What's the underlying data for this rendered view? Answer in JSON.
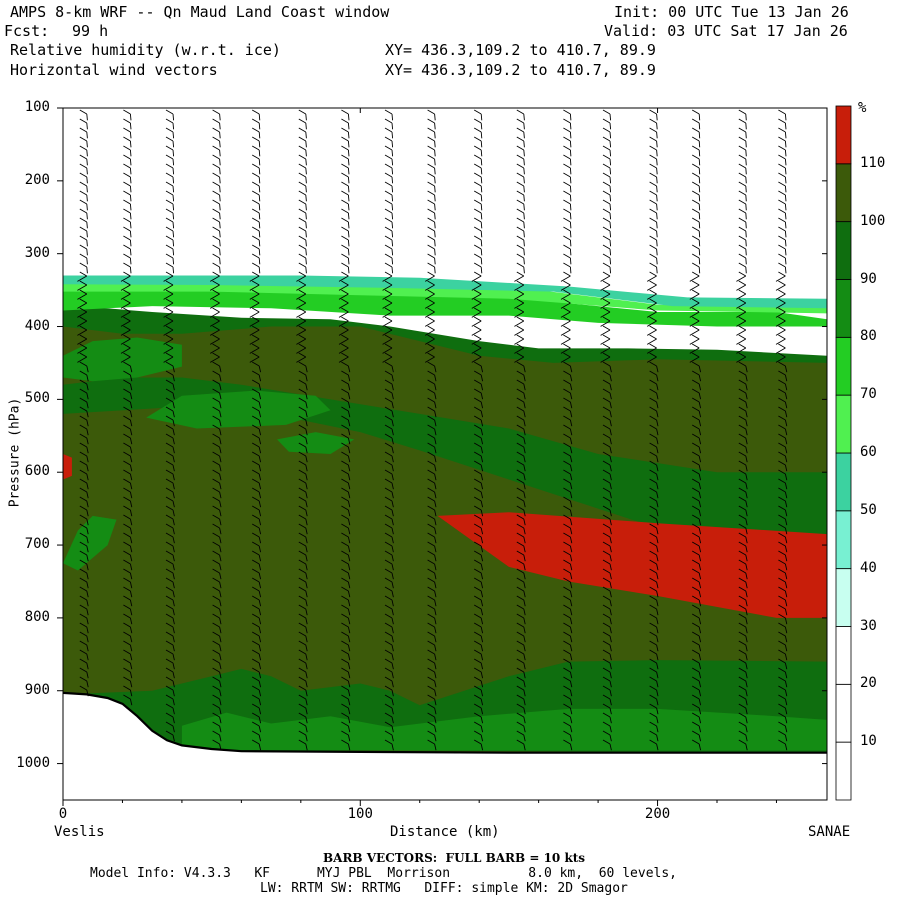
{
  "header": {
    "title": "AMPS 8-km WRF -- Qn Maud Land Coast window",
    "init": "Init: 00 UTC Tue 13 Jan 26",
    "fcst_label": "Fcst:",
    "fcst_hours": "99 h",
    "valid": "Valid: 03 UTC Sat 17 Jan 26",
    "field1": "Relative humidity (w.r.t. ice)",
    "field2": "Horizontal wind vectors",
    "xy1": "XY= 436.3,109.2 to 410.7, 89.9",
    "xy2": "XY= 436.3,109.2 to 410.7, 89.9"
  },
  "footer": {
    "barb_note": "BARB VECTORS:  FULL BARB = 10 kts",
    "model_info": "Model Info: V4.3.3   KF      MYJ PBL  Morrison          8.0 km,  60 levels,",
    "model_info2": "LW: RRTM SW: RRTMG   DIFF: simple KM: 2D Smagor"
  },
  "chart_data": {
    "type": "heatmap",
    "title": "Relative humidity (w.r.t. ice)",
    "xlabel": "Distance (km)",
    "ylabel": "Pressure (hPa)",
    "x_start_label": "Veslis",
    "x_end_label": "SANAE",
    "xlim": [
      0,
      257
    ],
    "ylim": [
      1050,
      100
    ],
    "x_ticks": [
      "0",
      "100",
      "200"
    ],
    "y_ticks": [
      "100",
      "200",
      "300",
      "400",
      "500",
      "600",
      "700",
      "800",
      "900",
      "1000"
    ],
    "colorbar": {
      "unit": "%",
      "levels": [
        "10",
        "20",
        "30",
        "40",
        "50",
        "60",
        "70",
        "80",
        "90",
        "100",
        "110"
      ],
      "colors": [
        "#ffffff",
        "#ffffff",
        "#ffffff",
        "#c8fff0",
        "#78f0d2",
        "#3cd2a0",
        "#50f050",
        "#23cd23",
        "#148c14",
        "#0f6e0f",
        "#3c5a0a",
        "#c81e0a"
      ]
    },
    "terrain_hPa": [
      [
        0,
        903
      ],
      [
        8,
        905
      ],
      [
        15,
        910
      ],
      [
        20,
        918
      ],
      [
        25,
        935
      ],
      [
        30,
        955
      ],
      [
        35,
        968
      ],
      [
        40,
        975
      ],
      [
        50,
        980
      ],
      [
        60,
        983
      ],
      [
        100,
        984
      ],
      [
        150,
        985
      ],
      [
        200,
        985
      ],
      [
        257,
        985
      ]
    ],
    "regions": [
      {
        "rh": 90,
        "poly": [
          [
            0,
            370
          ],
          [
            30,
            380
          ],
          [
            60,
            388
          ],
          [
            90,
            390
          ],
          [
            110,
            400
          ],
          [
            140,
            420
          ],
          [
            160,
            430
          ],
          [
            190,
            430
          ],
          [
            220,
            432
          ],
          [
            257,
            440
          ],
          [
            257,
            985
          ],
          [
            0,
            985
          ]
        ]
      },
      {
        "rh": 100,
        "poly": [
          [
            0,
            400
          ],
          [
            20,
            410
          ],
          [
            40,
            410
          ],
          [
            70,
            400
          ],
          [
            100,
            400
          ],
          [
            120,
            420
          ],
          [
            140,
            440
          ],
          [
            165,
            450
          ],
          [
            200,
            445
          ],
          [
            257,
            450
          ],
          [
            257,
            600
          ],
          [
            220,
            600
          ],
          [
            180,
            575
          ],
          [
            150,
            540
          ],
          [
            120,
            520
          ],
          [
            90,
            500
          ],
          [
            60,
            480
          ],
          [
            40,
            470
          ],
          [
            20,
            470
          ],
          [
            0,
            480
          ]
        ]
      },
      {
        "rh": 100,
        "poly": [
          [
            0,
            520
          ],
          [
            40,
            510
          ],
          [
            70,
            520
          ],
          [
            100,
            545
          ],
          [
            120,
            570
          ],
          [
            150,
            610
          ],
          [
            180,
            650
          ],
          [
            210,
            690
          ],
          [
            257,
            700
          ],
          [
            257,
            985
          ],
          [
            0,
            985
          ]
        ]
      },
      {
        "rh": 90,
        "poly": [
          [
            0,
            980
          ],
          [
            0,
            905
          ],
          [
            30,
            900
          ],
          [
            50,
            880
          ],
          [
            60,
            870
          ],
          [
            70,
            880
          ],
          [
            80,
            900
          ],
          [
            100,
            890
          ],
          [
            110,
            900
          ],
          [
            120,
            920
          ],
          [
            150,
            880
          ],
          [
            170,
            860
          ],
          [
            200,
            858
          ],
          [
            257,
            860
          ],
          [
            257,
            985
          ]
        ]
      },
      {
        "rh": 80,
        "poly": [
          [
            40,
            948
          ],
          [
            55,
            930
          ],
          [
            70,
            945
          ],
          [
            90,
            935
          ],
          [
            110,
            950
          ],
          [
            140,
            935
          ],
          [
            170,
            925
          ],
          [
            200,
            925
          ],
          [
            240,
            935
          ],
          [
            257,
            940
          ],
          [
            257,
            982
          ],
          [
            40,
            982
          ]
        ]
      },
      {
        "rh": 80,
        "poly": [
          [
            0,
            440
          ],
          [
            10,
            420
          ],
          [
            25,
            415
          ],
          [
            40,
            425
          ],
          [
            40,
            455
          ],
          [
            25,
            470
          ],
          [
            10,
            475
          ],
          [
            0,
            470
          ]
        ]
      },
      {
        "rh": 80,
        "poly": [
          [
            28,
            525
          ],
          [
            40,
            495
          ],
          [
            65,
            488
          ],
          [
            85,
            495
          ],
          [
            90,
            515
          ],
          [
            75,
            535
          ],
          [
            45,
            540
          ]
        ]
      },
      {
        "rh": 80,
        "poly": [
          [
            72,
            555
          ],
          [
            85,
            545
          ],
          [
            98,
            555
          ],
          [
            90,
            575
          ],
          [
            76,
            572
          ]
        ]
      },
      {
        "rh": 80,
        "poly": [
          [
            0,
            725
          ],
          [
            5,
            680
          ],
          [
            10,
            660
          ],
          [
            18,
            665
          ],
          [
            15,
            700
          ],
          [
            5,
            735
          ]
        ]
      },
      {
        "rh": 110,
        "poly": [
          [
            126,
            660
          ],
          [
            150,
            655
          ],
          [
            200,
            670
          ],
          [
            257,
            685
          ],
          [
            257,
            800
          ],
          [
            240,
            800
          ],
          [
            200,
            770
          ],
          [
            170,
            750
          ],
          [
            150,
            730
          ]
        ]
      },
      {
        "rh": 110,
        "poly": [
          [
            0,
            575
          ],
          [
            3,
            580
          ],
          [
            3,
            605
          ],
          [
            0,
            610
          ]
        ]
      },
      {
        "rh": 70,
        "poly": [
          [
            0,
            350
          ],
          [
            60,
            352
          ],
          [
            100,
            355
          ],
          [
            150,
            360
          ],
          [
            200,
            380
          ],
          [
            240,
            380
          ],
          [
            257,
            390
          ],
          [
            257,
            400
          ],
          [
            220,
            400
          ],
          [
            180,
            395
          ],
          [
            150,
            385
          ],
          [
            110,
            385
          ],
          [
            70,
            375
          ],
          [
            30,
            372
          ],
          [
            0,
            378
          ]
        ]
      },
      {
        "rh": 60,
        "poly": [
          [
            0,
            340
          ],
          [
            60,
            342
          ],
          [
            110,
            345
          ],
          [
            160,
            350
          ],
          [
            200,
            370
          ],
          [
            257,
            372
          ],
          [
            257,
            382
          ],
          [
            200,
            378
          ],
          [
            150,
            362
          ],
          [
            100,
            357
          ],
          [
            50,
            352
          ],
          [
            0,
            352
          ]
        ]
      },
      {
        "rh": 50,
        "poly": [
          [
            0,
            330
          ],
          [
            80,
            330
          ],
          [
            120,
            333
          ],
          [
            170,
            345
          ],
          [
            210,
            360
          ],
          [
            257,
            362
          ],
          [
            257,
            375
          ],
          [
            205,
            372
          ],
          [
            165,
            352
          ],
          [
            110,
            347
          ],
          [
            50,
            343
          ],
          [
            0,
            342
          ]
        ]
      }
    ],
    "barb_columns_km": [
      8,
      22,
      37,
      52,
      66,
      81,
      96,
      110,
      125,
      140,
      155,
      170,
      184,
      199,
      214,
      229,
      243
    ]
  }
}
